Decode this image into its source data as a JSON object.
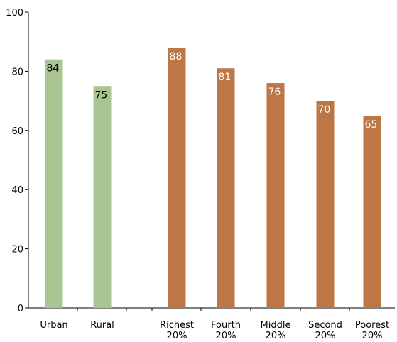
{
  "chart_data": {
    "type": "bar",
    "title": "",
    "xlabel": "",
    "ylabel": "",
    "ylim": [
      0,
      100
    ],
    "yticks": [
      0,
      20,
      40,
      60,
      80,
      100
    ],
    "grid": false,
    "bars": [
      {
        "label": [
          "Urban"
        ],
        "value": 84,
        "color": "#a8c592",
        "label_color": "#000000"
      },
      {
        "label": [
          "Rural"
        ],
        "value": 75,
        "color": "#a8c592",
        "label_color": "#000000"
      },
      {
        "label": [
          "Richest",
          "20%"
        ],
        "value": 88,
        "color": "#bd7646",
        "label_color": "#ffffff"
      },
      {
        "label": [
          "Fourth",
          "20%"
        ],
        "value": 81,
        "color": "#bd7646",
        "label_color": "#ffffff"
      },
      {
        "label": [
          "Middle",
          "20%"
        ],
        "value": 76,
        "color": "#bd7646",
        "label_color": "#ffffff"
      },
      {
        "label": [
          "Second",
          "20%"
        ],
        "value": 70,
        "color": "#bd7646",
        "label_color": "#ffffff"
      },
      {
        "label": [
          "Poorest",
          "20%"
        ],
        "value": 65,
        "color": "#bd7646",
        "label_color": "#ffffff"
      }
    ]
  }
}
